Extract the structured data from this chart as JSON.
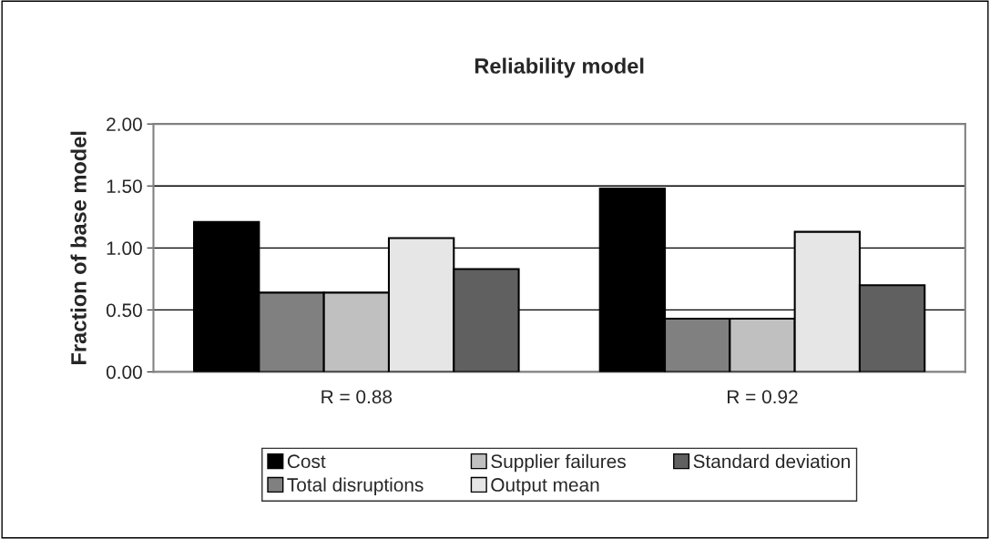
{
  "chart_data": {
    "type": "bar",
    "title": "Reliability model",
    "ylabel": "Fraction of base model",
    "categories": [
      "R = 0.88",
      "R = 0.92"
    ],
    "series": [
      {
        "name": "Cost",
        "color": "#000000",
        "values": [
          1.21,
          1.48
        ]
      },
      {
        "name": "Total disruptions",
        "color": "#808080",
        "values": [
          0.64,
          0.43
        ]
      },
      {
        "name": "Supplier failures",
        "color": "#c0c0c0",
        "values": [
          0.64,
          0.43
        ]
      },
      {
        "name": "Output mean",
        "color": "#e6e6e6",
        "values": [
          1.08,
          1.13
        ]
      },
      {
        "name": "Standard deviation",
        "color": "#606060",
        "values": [
          0.83,
          0.7
        ]
      }
    ],
    "ylim": [
      0,
      2
    ],
    "yticks": [
      {
        "value": 0,
        "label": "0.00"
      },
      {
        "value": 0.5,
        "label": "0.50"
      },
      {
        "value": 1,
        "label": "1.00"
      },
      {
        "value": 1.5,
        "label": "1.50"
      },
      {
        "value": 2,
        "label": "2.00"
      }
    ],
    "grid": "y",
    "legend": "bottom"
  }
}
